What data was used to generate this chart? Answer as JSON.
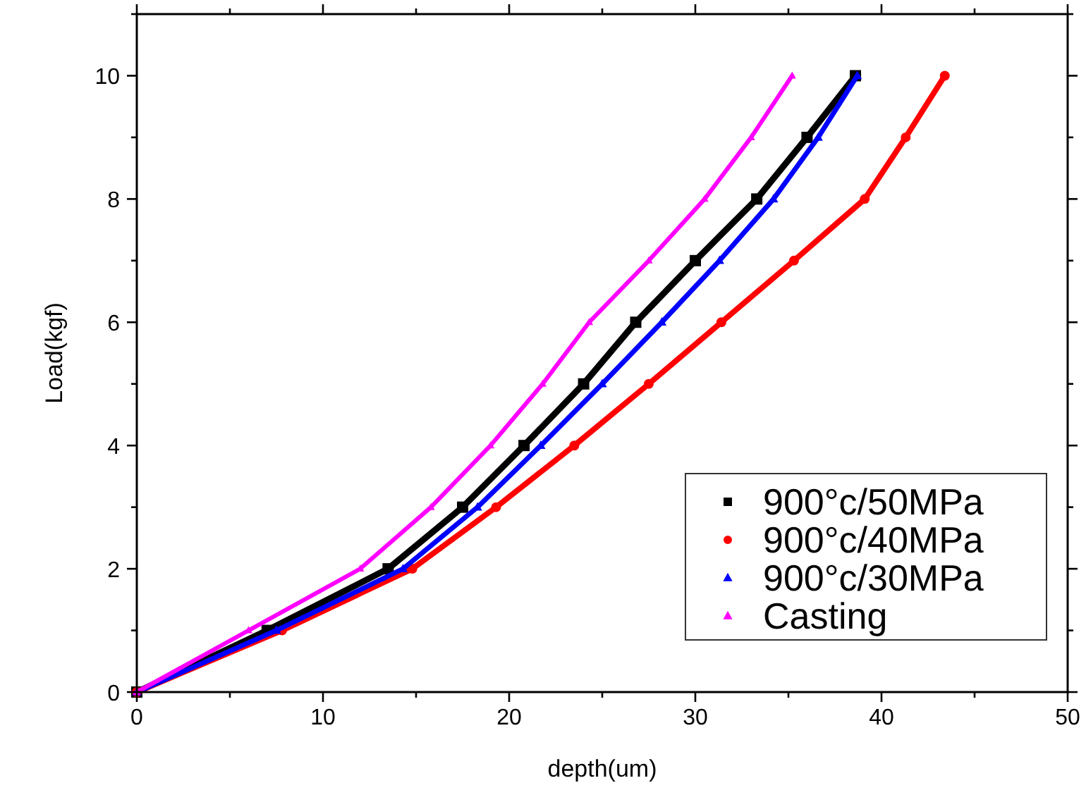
{
  "chart_data": {
    "type": "line",
    "xlabel": "depth(um)",
    "ylabel": "Load(kgf)",
    "xlim": [
      0,
      50
    ],
    "ylim": [
      0,
      11
    ],
    "xticks": [
      0,
      {
        "value": 5,
        "label": null
      },
      10,
      {
        "value": 15,
        "label": null
      },
      20,
      {
        "value": 25,
        "label": null
      },
      30,
      {
        "value": 35,
        "label": null
      },
      40,
      {
        "value": 45,
        "label": null
      },
      50
    ],
    "yticks": [
      0,
      {
        "value": 1,
        "label": null
      },
      2,
      {
        "value": 3,
        "label": null
      },
      4,
      {
        "value": 5,
        "label": null
      },
      6,
      {
        "value": 7,
        "label": null
      },
      8,
      {
        "value": 9,
        "label": null
      },
      10,
      {
        "value": 11,
        "label": null
      }
    ],
    "grid": false,
    "legend": "bottom right",
    "line_style": "solid",
    "series": [
      {
        "name": "900°c/50MPa",
        "color": "#000000",
        "marker": "square",
        "x": [
          0,
          7,
          13.5,
          17.5,
          20.8,
          24,
          26.8,
          30,
          33.3,
          36,
          38.6
        ],
        "values": [
          0,
          1,
          2,
          3,
          4,
          5,
          6,
          7,
          8,
          9,
          10
        ]
      },
      {
        "name": "900°c/40MPa",
        "color": "#ff0000",
        "marker": "circle",
        "x": [
          0,
          7.8,
          14.8,
          19.3,
          23.5,
          27.5,
          31.4,
          35.3,
          39.1,
          41.3,
          43.4
        ],
        "values": [
          0,
          1,
          2,
          3,
          4,
          5,
          6,
          7,
          8,
          9,
          10
        ]
      },
      {
        "name": "900°c/30MPa",
        "color": "#0000ff",
        "marker": "triangle",
        "x": [
          0,
          7.5,
          14.3,
          18.3,
          21.7,
          25,
          28.2,
          31.3,
          34.2,
          36.6,
          38.7
        ],
        "values": [
          0,
          1,
          2,
          3,
          4,
          5,
          6,
          7,
          8,
          9,
          10
        ]
      },
      {
        "name": "Casting",
        "color": "#ff00ff",
        "marker": "triangle",
        "x": [
          0,
          6,
          12,
          15.8,
          19,
          21.8,
          24.3,
          27.5,
          30.5,
          33,
          35.2
        ],
        "values": [
          0,
          1,
          2,
          3,
          4,
          5,
          6,
          7,
          8,
          9,
          10
        ]
      }
    ]
  }
}
